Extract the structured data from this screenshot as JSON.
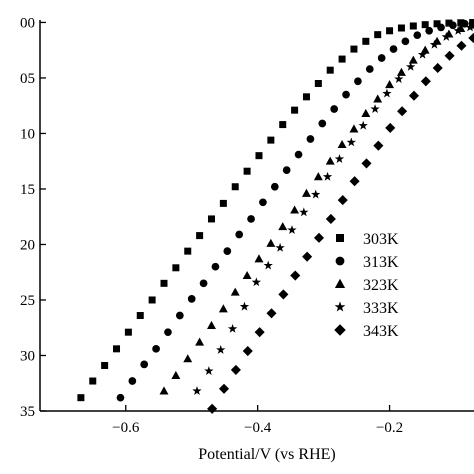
{
  "chart_data": {
    "type": "scatter",
    "title": "",
    "xlabel": "Potential/V (vs RHE)",
    "ylabel": "",
    "xlim": [
      -0.73,
      -0.072
    ],
    "ylim": [
      -35,
      0.4
    ],
    "x_ticks": [
      -0.6,
      -0.4,
      -0.2
    ],
    "x_tick_labels": [
      "−0.6",
      "−0.4",
      "−0.2"
    ],
    "y_ticks": [
      0,
      -5,
      -10,
      -15,
      -20,
      -25,
      -30,
      -35
    ],
    "y_tick_labels": [
      "00",
      "05",
      "10",
      "15",
      "20",
      "25",
      "30",
      "35"
    ],
    "grid": false,
    "legend_position": "lower-right",
    "color": "#000000",
    "series": [
      {
        "name": "303K",
        "marker": "square",
        "x": [
          -0.668,
          -0.65,
          -0.632,
          -0.614,
          -0.596,
          -0.578,
          -0.56,
          -0.542,
          -0.524,
          -0.506,
          -0.488,
          -0.47,
          -0.452,
          -0.434,
          -0.416,
          -0.398,
          -0.38,
          -0.362,
          -0.344,
          -0.326,
          -0.308,
          -0.29,
          -0.272,
          -0.254,
          -0.236,
          -0.218,
          -0.2,
          -0.182,
          -0.164,
          -0.146,
          -0.128,
          -0.11,
          -0.092,
          -0.074
        ],
        "y": [
          -33.8,
          -32.3,
          -30.9,
          -29.4,
          -27.9,
          -26.4,
          -25.0,
          -23.5,
          -22.1,
          -20.6,
          -19.2,
          -17.7,
          -16.3,
          -14.8,
          -13.4,
          -12.0,
          -10.6,
          -9.2,
          -7.9,
          -6.7,
          -5.5,
          -4.3,
          -3.3,
          -2.4,
          -1.7,
          -1.1,
          -0.75,
          -0.5,
          -0.32,
          -0.2,
          -0.12,
          -0.06,
          -0.03,
          -0.01
        ]
      },
      {
        "name": "313K",
        "marker": "circle",
        "x": [
          -0.608,
          -0.59,
          -0.572,
          -0.554,
          -0.536,
          -0.518,
          -0.5,
          -0.482,
          -0.464,
          -0.446,
          -0.428,
          -0.41,
          -0.392,
          -0.374,
          -0.356,
          -0.338,
          -0.32,
          -0.302,
          -0.284,
          -0.266,
          -0.248,
          -0.23,
          -0.212,
          -0.194,
          -0.176,
          -0.158,
          -0.14,
          -0.122,
          -0.104,
          -0.086,
          -0.074
        ],
        "y": [
          -33.8,
          -32.3,
          -30.8,
          -29.4,
          -27.9,
          -26.4,
          -24.9,
          -23.5,
          -22.0,
          -20.6,
          -19.1,
          -17.7,
          -16.2,
          -14.8,
          -13.3,
          -11.9,
          -10.5,
          -9.1,
          -7.8,
          -6.5,
          -5.3,
          -4.2,
          -3.2,
          -2.4,
          -1.7,
          -1.15,
          -0.75,
          -0.45,
          -0.25,
          -0.12,
          -0.06
        ]
      },
      {
        "name": "323K",
        "marker": "triangle",
        "x": [
          -0.542,
          -0.524,
          -0.506,
          -0.488,
          -0.47,
          -0.452,
          -0.434,
          -0.416,
          -0.398,
          -0.38,
          -0.362,
          -0.344,
          -0.326,
          -0.308,
          -0.29,
          -0.272,
          -0.254,
          -0.236,
          -0.218,
          -0.2,
          -0.182,
          -0.164,
          -0.146,
          -0.128,
          -0.11,
          -0.092,
          -0.074
        ],
        "y": [
          -33.2,
          -31.8,
          -30.3,
          -28.8,
          -27.3,
          -25.8,
          -24.3,
          -22.8,
          -21.3,
          -19.9,
          -18.4,
          -16.9,
          -15.4,
          -13.9,
          -12.5,
          -11.0,
          -9.6,
          -8.2,
          -6.9,
          -5.6,
          -4.5,
          -3.4,
          -2.5,
          -1.7,
          -1.05,
          -0.55,
          -0.25
        ]
      },
      {
        "name": "333K",
        "marker": "star",
        "x": [
          -0.492,
          -0.474,
          -0.456,
          -0.438,
          -0.42,
          -0.402,
          -0.384,
          -0.366,
          -0.348,
          -0.33,
          -0.312,
          -0.294,
          -0.276,
          -0.258,
          -0.24,
          -0.222,
          -0.204,
          -0.186,
          -0.168,
          -0.15,
          -0.132,
          -0.114,
          -0.096,
          -0.078
        ],
        "y": [
          -33.2,
          -31.4,
          -29.5,
          -27.6,
          -25.6,
          -23.4,
          -21.9,
          -20.3,
          -18.7,
          -17.1,
          -15.5,
          -13.9,
          -12.3,
          -10.8,
          -9.3,
          -7.8,
          -6.4,
          -5.1,
          -4.0,
          -2.9,
          -2.0,
          -1.3,
          -0.75,
          -0.45
        ]
      },
      {
        "name": "343K",
        "marker": "diamond",
        "x": [
          -0.469,
          -0.451,
          -0.433,
          -0.415,
          -0.397,
          -0.379,
          -0.361,
          -0.343,
          -0.325,
          -0.307,
          -0.289,
          -0.271,
          -0.253,
          -0.235,
          -0.217,
          -0.199,
          -0.181,
          -0.163,
          -0.145,
          -0.127,
          -0.109,
          -0.091,
          -0.073
        ],
        "y": [
          -34.8,
          -33.0,
          -31.3,
          -29.6,
          -27.9,
          -26.2,
          -24.5,
          -22.8,
          -21.1,
          -19.4,
          -17.7,
          -16.0,
          -14.3,
          -12.7,
          -11.1,
          -9.5,
          -8.0,
          -6.6,
          -5.3,
          -4.1,
          -3.0,
          -2.1,
          -1.4
        ]
      }
    ]
  }
}
